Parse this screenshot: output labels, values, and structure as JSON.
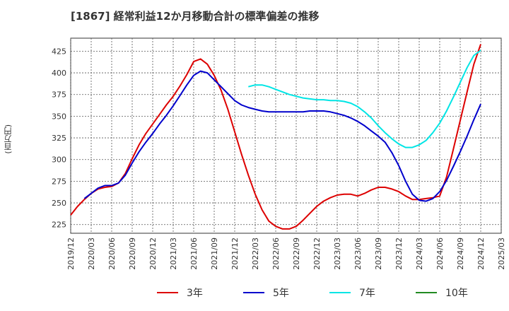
{
  "title": "[1867]  経常利益12か月移動合計の標準偏差の推移",
  "y_unit": "(百万円)",
  "chart_data": {
    "type": "line",
    "title": "[1867]  経常利益12か月移動合計の標準偏差の推移",
    "ylabel": "(百万円)",
    "xlabel": "",
    "ylim": [
      215,
      440
    ],
    "xlim": [
      "2019/12",
      "2025/03"
    ],
    "y_ticks": [
      225,
      250,
      275,
      300,
      325,
      350,
      375,
      400,
      425
    ],
    "x_ticks": [
      "2019/12",
      "2020/03",
      "2020/06",
      "2020/09",
      "2020/12",
      "2021/03",
      "2021/06",
      "2021/09",
      "2021/12",
      "2022/03",
      "2022/06",
      "2022/09",
      "2022/12",
      "2023/03",
      "2023/06",
      "2023/09",
      "2023/12",
      "2024/03",
      "2024/06",
      "2024/09",
      "2024/12",
      "2025/03"
    ],
    "grid": true,
    "legend_position": "bottom",
    "series": [
      {
        "name": "3年",
        "color": "#dd0000",
        "points": [
          [
            "2019/12",
            236
          ],
          [
            "2020/01",
            246
          ],
          [
            "2020/02",
            254
          ],
          [
            "2020/03",
            261
          ],
          [
            "2020/04",
            266
          ],
          [
            "2020/05",
            268
          ],
          [
            "2020/06",
            269
          ],
          [
            "2020/07",
            273
          ],
          [
            "2020/08",
            284
          ],
          [
            "2020/09",
            301
          ],
          [
            "2020/10",
            317
          ],
          [
            "2020/11",
            330
          ],
          [
            "2020/12",
            341
          ],
          [
            "2021/01",
            352
          ],
          [
            "2021/02",
            363
          ],
          [
            "2021/03",
            373
          ],
          [
            "2021/04",
            385
          ],
          [
            "2021/05",
            398
          ],
          [
            "2021/06",
            413
          ],
          [
            "2021/07",
            416
          ],
          [
            "2021/08",
            410
          ],
          [
            "2021/09",
            397
          ],
          [
            "2021/10",
            380
          ],
          [
            "2021/11",
            358
          ],
          [
            "2021/12",
            332
          ],
          [
            "2022/01",
            306
          ],
          [
            "2022/02",
            282
          ],
          [
            "2022/03",
            260
          ],
          [
            "2022/04",
            242
          ],
          [
            "2022/05",
            229
          ],
          [
            "2022/06",
            223
          ],
          [
            "2022/07",
            220
          ],
          [
            "2022/08",
            220
          ],
          [
            "2022/09",
            223
          ],
          [
            "2022/10",
            230
          ],
          [
            "2022/11",
            238
          ],
          [
            "2022/12",
            246
          ],
          [
            "2023/01",
            252
          ],
          [
            "2023/02",
            256
          ],
          [
            "2023/03",
            259
          ],
          [
            "2023/04",
            260
          ],
          [
            "2023/05",
            260
          ],
          [
            "2023/06",
            258
          ],
          [
            "2023/07",
            261
          ],
          [
            "2023/08",
            265
          ],
          [
            "2023/09",
            268
          ],
          [
            "2023/10",
            268
          ],
          [
            "2023/11",
            266
          ],
          [
            "2023/12",
            263
          ],
          [
            "2024/01",
            258
          ],
          [
            "2024/02",
            254
          ],
          [
            "2024/03",
            254
          ],
          [
            "2024/04",
            255
          ],
          [
            "2024/05",
            256
          ],
          [
            "2024/06",
            258
          ],
          [
            "2024/07",
            280
          ],
          [
            "2024/08",
            312
          ],
          [
            "2024/09",
            345
          ],
          [
            "2024/10",
            378
          ],
          [
            "2024/11",
            410
          ],
          [
            "2024/12",
            433
          ]
        ]
      },
      {
        "name": "5年",
        "color": "#0000cc",
        "points": [
          [
            "2020/02",
            255
          ],
          [
            "2020/03",
            261
          ],
          [
            "2020/04",
            267
          ],
          [
            "2020/05",
            270
          ],
          [
            "2020/06",
            270
          ],
          [
            "2020/07",
            273
          ],
          [
            "2020/08",
            282
          ],
          [
            "2020/09",
            296
          ],
          [
            "2020/10",
            309
          ],
          [
            "2020/11",
            320
          ],
          [
            "2020/12",
            330
          ],
          [
            "2021/01",
            341
          ],
          [
            "2021/02",
            351
          ],
          [
            "2021/03",
            362
          ],
          [
            "2021/04",
            374
          ],
          [
            "2021/05",
            386
          ],
          [
            "2021/06",
            397
          ],
          [
            "2021/07",
            402
          ],
          [
            "2021/08",
            400
          ],
          [
            "2021/09",
            392
          ],
          [
            "2021/10",
            384
          ],
          [
            "2021/11",
            376
          ],
          [
            "2021/12",
            368
          ],
          [
            "2022/01",
            363
          ],
          [
            "2022/02",
            360
          ],
          [
            "2022/03",
            358
          ],
          [
            "2022/04",
            356
          ],
          [
            "2022/05",
            355
          ],
          [
            "2022/06",
            355
          ],
          [
            "2022/07",
            355
          ],
          [
            "2022/08",
            355
          ],
          [
            "2022/09",
            355
          ],
          [
            "2022/10",
            355
          ],
          [
            "2022/11",
            356
          ],
          [
            "2022/12",
            356
          ],
          [
            "2023/01",
            356
          ],
          [
            "2023/02",
            355
          ],
          [
            "2023/03",
            353
          ],
          [
            "2023/04",
            351
          ],
          [
            "2023/05",
            348
          ],
          [
            "2023/06",
            344
          ],
          [
            "2023/07",
            339
          ],
          [
            "2023/08",
            333
          ],
          [
            "2023/09",
            327
          ],
          [
            "2023/10",
            320
          ],
          [
            "2023/11",
            308
          ],
          [
            "2023/12",
            293
          ],
          [
            "2024/01",
            275
          ],
          [
            "2024/02",
            260
          ],
          [
            "2024/03",
            253
          ],
          [
            "2024/04",
            252
          ],
          [
            "2024/05",
            255
          ],
          [
            "2024/06",
            263
          ],
          [
            "2024/07",
            276
          ],
          [
            "2024/08",
            292
          ],
          [
            "2024/09",
            309
          ],
          [
            "2024/10",
            327
          ],
          [
            "2024/11",
            346
          ],
          [
            "2024/12",
            364
          ]
        ]
      },
      {
        "name": "7年",
        "color": "#00e5e5",
        "points": [
          [
            "2022/02",
            384
          ],
          [
            "2022/03",
            386
          ],
          [
            "2022/04",
            386
          ],
          [
            "2022/05",
            384
          ],
          [
            "2022/06",
            381
          ],
          [
            "2022/07",
            378
          ],
          [
            "2022/08",
            375
          ],
          [
            "2022/09",
            373
          ],
          [
            "2022/10",
            371
          ],
          [
            "2022/11",
            370
          ],
          [
            "2022/12",
            369
          ],
          [
            "2023/01",
            369
          ],
          [
            "2023/02",
            368
          ],
          [
            "2023/03",
            368
          ],
          [
            "2023/04",
            367
          ],
          [
            "2023/05",
            365
          ],
          [
            "2023/06",
            361
          ],
          [
            "2023/07",
            355
          ],
          [
            "2023/08",
            348
          ],
          [
            "2023/09",
            339
          ],
          [
            "2023/10",
            331
          ],
          [
            "2023/11",
            324
          ],
          [
            "2023/12",
            318
          ],
          [
            "2024/01",
            314
          ],
          [
            "2024/02",
            314
          ],
          [
            "2024/03",
            317
          ],
          [
            "2024/04",
            322
          ],
          [
            "2024/05",
            331
          ],
          [
            "2024/06",
            342
          ],
          [
            "2024/07",
            356
          ],
          [
            "2024/08",
            372
          ],
          [
            "2024/09",
            389
          ],
          [
            "2024/10",
            406
          ],
          [
            "2024/11",
            420
          ],
          [
            "2024/12",
            426
          ]
        ]
      },
      {
        "name": "10年",
        "color": "#228b22",
        "points": []
      }
    ]
  }
}
